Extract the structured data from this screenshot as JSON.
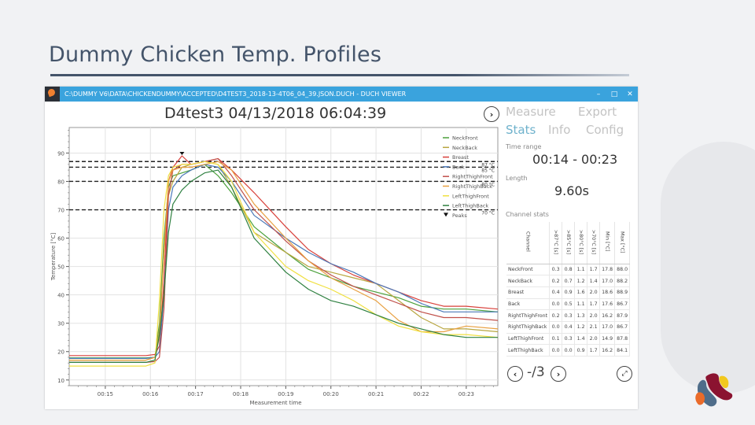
{
  "slide": {
    "title": "Dummy Chicken Temp. Profiles"
  },
  "window": {
    "title": "C:\\DUMMY V6\\DATA\\CHICKENDUMMY\\ACCEPTED\\D4TEST3_2018-13-4T06_04_39.JSON.DUCH - DUCH VIEWER",
    "controls": {
      "minimize": "–",
      "maximize": "□",
      "close": "✕"
    }
  },
  "chart_header": {
    "title": "D4test3 04/13/2018 06:04:39",
    "next_icon": "›"
  },
  "panel": {
    "tabs": [
      {
        "label": "Measure",
        "active": false
      },
      {
        "label": "Export",
        "active": false
      },
      {
        "label": "Stats",
        "active": true
      },
      {
        "label": "Info",
        "active": false
      },
      {
        "label": "Config",
        "active": false
      }
    ],
    "time_range_label": "Time range",
    "time_range_value": "00:14 - 00:23",
    "length_label": "Length",
    "length_value": "9.60s",
    "channel_stats_label": "Channel stats",
    "table": {
      "headers": [
        "Channel",
        ">87°C [s]",
        ">85°C [s]",
        ">80°C [s]",
        ">70°C [s]",
        "Min [°C]",
        "Max [°C]"
      ],
      "rows": [
        [
          "NeckFront",
          "0.3",
          "0.8",
          "1.1",
          "1.7",
          "17.8",
          "88.0"
        ],
        [
          "NeckBack",
          "0.2",
          "0.7",
          "1.2",
          "1.4",
          "17.0",
          "88.2"
        ],
        [
          "Breast",
          "0.4",
          "0.9",
          "1.6",
          "2.0",
          "18.6",
          "88.9"
        ],
        [
          "Back",
          "0.0",
          "0.5",
          "1.1",
          "1.7",
          "17.6",
          "86.7"
        ],
        [
          "RightThighFront",
          "0.2",
          "0.3",
          "1.3",
          "2.0",
          "16.2",
          "87.9"
        ],
        [
          "RightThighBack",
          "0.0",
          "0.4",
          "1.2",
          "2.1",
          "17.0",
          "86.7"
        ],
        [
          "LeftThighFront",
          "0.1",
          "0.3",
          "1.4",
          "2.0",
          "14.9",
          "87.8"
        ],
        [
          "LeftThighBack",
          "0.0",
          "0.0",
          "0.9",
          "1.7",
          "16.2",
          "84.1"
        ]
      ]
    },
    "pager": {
      "prev_icon": "‹",
      "text": "-/3",
      "next_icon": "›",
      "fullscreen_icon": "⤢"
    }
  },
  "chart_data": {
    "type": "line",
    "title": "D4test3 04/13/2018 06:04:39",
    "xlabel": "Measurement time",
    "ylabel": "Temperature [°C]",
    "x_ticks": [
      "00:15",
      "00:16",
      "00:17",
      "00:18",
      "00:19",
      "00:20",
      "00:21",
      "00:22",
      "00:23"
    ],
    "y_ticks": [
      10,
      20,
      30,
      40,
      50,
      60,
      70,
      80,
      90
    ],
    "ylim": [
      8,
      99
    ],
    "xlim_seconds": [
      14.2,
      23.7
    ],
    "grid": true,
    "legend_position": "top-right-inside",
    "thresholds": [
      {
        "value": 87,
        "label": "87 °C"
      },
      {
        "value": 85,
        "label": "85 °C"
      },
      {
        "value": 80,
        "label": "80 °C"
      },
      {
        "value": 70,
        "label": "70 °C"
      }
    ],
    "peaks_label": "Peaks",
    "peak_marker": {
      "x": 16.7,
      "y": 89.3
    },
    "x": [
      14.2,
      15.9,
      16.1,
      16.2,
      16.3,
      16.4,
      16.5,
      16.7,
      16.9,
      17.2,
      17.5,
      17.8,
      18.3,
      19.0,
      19.5,
      20.0,
      20.5,
      21.0,
      21.5,
      22.0,
      22.5,
      23.0,
      23.7
    ],
    "series": [
      {
        "name": "NeckFront",
        "color": "#4aa03a",
        "values": [
          17.8,
          17.8,
          18,
          30,
          60,
          78,
          82,
          83,
          84,
          86,
          82,
          76,
          64,
          55,
          49,
          46,
          43,
          41,
          39,
          36,
          35,
          35,
          34
        ]
      },
      {
        "name": "NeckBack",
        "color": "#b8a640",
        "values": [
          17,
          17,
          18,
          28,
          55,
          75,
          80,
          85,
          86,
          87,
          86,
          78,
          62,
          55,
          50,
          48,
          46,
          44,
          38,
          32,
          28,
          28,
          27
        ]
      },
      {
        "name": "Breast",
        "color": "#d8403a",
        "values": [
          18.6,
          18.6,
          19,
          22,
          45,
          80,
          85,
          89,
          86,
          87,
          88,
          84,
          76,
          64,
          56,
          51,
          47,
          44,
          41,
          38,
          36,
          36,
          35
        ]
      },
      {
        "name": "Back",
        "color": "#4a78b8",
        "values": [
          17.6,
          17.6,
          18,
          20,
          40,
          70,
          78,
          82,
          84,
          86,
          85,
          80,
          68,
          60,
          55,
          51,
          48,
          44,
          41,
          37,
          34,
          34,
          34
        ]
      },
      {
        "name": "RightThighFront",
        "color": "#c0504a",
        "values": [
          16.2,
          16.2,
          16.5,
          18,
          35,
          75,
          84,
          86,
          86,
          87,
          88,
          82,
          70,
          59,
          52,
          47,
          43,
          40,
          37,
          34,
          32,
          32,
          31
        ]
      },
      {
        "name": "RightThighBack",
        "color": "#e8a040",
        "values": [
          17,
          17,
          18,
          25,
          55,
          80,
          84,
          85,
          85,
          86,
          87,
          84,
          72,
          60,
          52,
          46,
          42,
          38,
          31,
          27,
          27,
          29,
          28
        ]
      },
      {
        "name": "LeftThighFront",
        "color": "#f0e040",
        "values": [
          14.9,
          14.9,
          16,
          38,
          70,
          82,
          85,
          86,
          86,
          87,
          86,
          80,
          62,
          50,
          45,
          42,
          38,
          33,
          29,
          27,
          26,
          26,
          25
        ]
      },
      {
        "name": "LeftThighBack",
        "color": "#2e8040",
        "values": [
          16.2,
          16.2,
          17,
          26,
          40,
          62,
          72,
          77,
          80,
          83,
          84,
          78,
          60,
          48,
          42,
          38,
          36,
          33,
          30,
          28,
          26,
          25,
          25
        ]
      }
    ]
  },
  "logo": {
    "name": "company-logo"
  }
}
